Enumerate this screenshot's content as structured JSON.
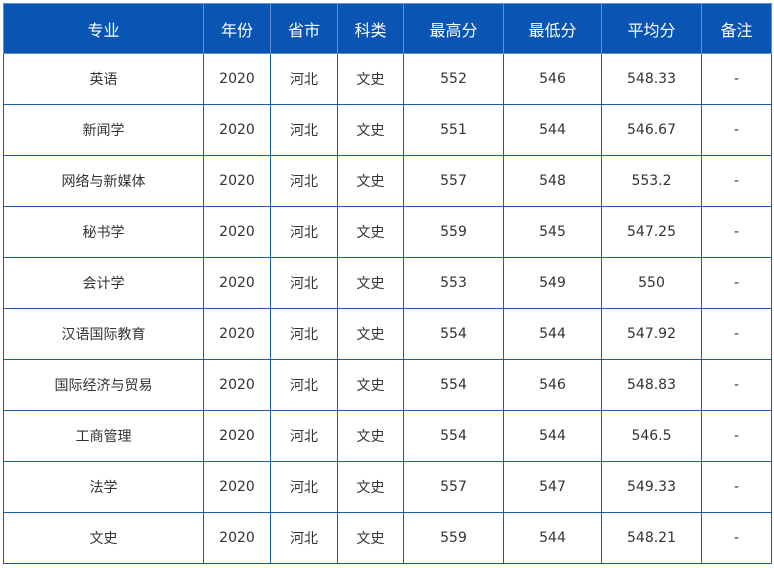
{
  "table": {
    "headers": [
      "专业",
      "年份",
      "省市",
      "科类",
      "最高分",
      "最低分",
      "平均分",
      "备注"
    ],
    "rows": [
      [
        "英语",
        "2020",
        "河北",
        "文史",
        "552",
        "546",
        "548.33",
        "-"
      ],
      [
        "新闻学",
        "2020",
        "河北",
        "文史",
        "551",
        "544",
        "546.67",
        "-"
      ],
      [
        "网络与新媒体",
        "2020",
        "河北",
        "文史",
        "557",
        "548",
        "553.2",
        "-"
      ],
      [
        "秘书学",
        "2020",
        "河北",
        "文史",
        "559",
        "545",
        "547.25",
        "-"
      ],
      [
        "会计学",
        "2020",
        "河北",
        "文史",
        "553",
        "549",
        "550",
        "-"
      ],
      [
        "汉语国际教育",
        "2020",
        "河北",
        "文史",
        "554",
        "544",
        "547.92",
        "-"
      ],
      [
        "国际经济与贸易",
        "2020",
        "河北",
        "文史",
        "554",
        "546",
        "548.83",
        "-"
      ],
      [
        "工商管理",
        "2020",
        "河北",
        "文史",
        "554",
        "544",
        "546.5",
        "-"
      ],
      [
        "法学",
        "2020",
        "河北",
        "文史",
        "557",
        "547",
        "549.33",
        "-"
      ],
      [
        "文史",
        "2020",
        "河北",
        "文史",
        "559",
        "544",
        "548.21",
        "-"
      ]
    ]
  }
}
